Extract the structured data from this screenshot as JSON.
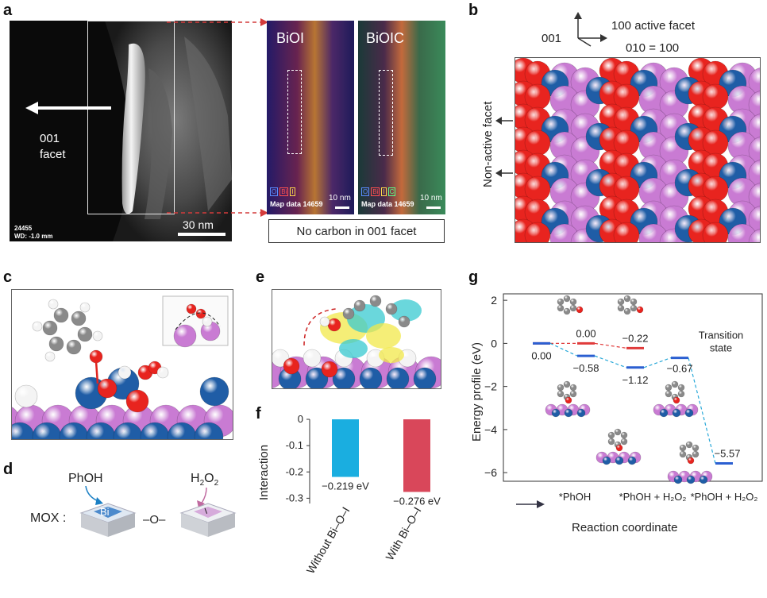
{
  "panels": {
    "a": "a",
    "b": "b",
    "c": "c",
    "d": "d",
    "e": "e",
    "f": "f",
    "g": "g"
  },
  "panel_a": {
    "facet_label_1": "001",
    "facet_label_2": "facet",
    "scale_label": "30 nm",
    "meta_1": "24455",
    "meta_2": "WD: -1.0 mm",
    "map1_title": "BiOI",
    "map2_title": "BiOIC",
    "map1_scale": "10 nm",
    "map2_scale": "10 nm",
    "map_data": "Map data 14659",
    "map1_legend": [
      "O",
      "Bi",
      "I"
    ],
    "map2_legend": [
      "O",
      "Bi",
      "I",
      "C"
    ],
    "note": "No carbon in 001 facet"
  },
  "panel_b": {
    "axis_001": "001",
    "axis_100": "100 active facet",
    "axis_010": "010 = 100",
    "side_label": "Non-active facet"
  },
  "panel_d": {
    "prefix": "MOX :",
    "phoh": "PhOH",
    "bi": "Bi",
    "link": "–O–",
    "h2o2": "H",
    "h2o2_sub": "2",
    "h2o2_end": "O",
    "h2o2_sub2": "2",
    "i": "I"
  },
  "chart_f": {
    "ylabel": "Interaction",
    "yticks": [
      "0",
      "-0.1",
      "-0.2",
      "-0.3"
    ],
    "categories": [
      "Without Bi–O–I",
      "With Bi–O–I"
    ],
    "value_labels": [
      "−0.219 eV",
      "−0.276 eV"
    ],
    "colors": [
      "#1aaee0",
      "#d9475a"
    ]
  },
  "chart_g": {
    "ylabel": "Energy profile (eV)",
    "xlabel": "Reaction coordinate",
    "yticks": [
      "2",
      "0",
      "−2",
      "−4",
      "−6"
    ],
    "xticks": [
      "*PhOH",
      "*PhOH + H₂O₂",
      "*PhOH + H₂O₂"
    ],
    "level_labels": [
      "0.00",
      "0.00",
      "−0.22",
      "−0.58",
      "−1.12",
      "−0.67",
      "−5.57"
    ],
    "ts_label_1": "Transition",
    "ts_label_2": "state"
  },
  "chart_data": [
    {
      "type": "bar",
      "ylabel": "Interaction",
      "categories": [
        "Without Bi–O–I",
        "With Bi–O–I"
      ],
      "values": [
        -0.219,
        -0.276
      ],
      "ylim": [
        -0.32,
        0
      ]
    },
    {
      "type": "line",
      "ylabel": "Energy profile (eV)",
      "xlabel": "Reaction coordinate",
      "ylim": [
        -7,
        2
      ],
      "series": [
        {
          "color": "#e03a3a",
          "x": [
            0,
            1,
            2
          ],
          "values": [
            0.0,
            0.0,
            -0.22
          ]
        },
        {
          "color": "#2b5fd1",
          "x": [
            0,
            1,
            2,
            3,
            4
          ],
          "values": [
            0.0,
            -0.58,
            -1.12,
            -0.67,
            -5.57
          ]
        }
      ]
    }
  ],
  "colors": {
    "red_atom": "#e8241f",
    "blue_atom": "#1f5da6",
    "purple_atom": "#c97bd3",
    "grey_atom": "#8a8a8a",
    "white_atom": "#f4f4f4"
  }
}
